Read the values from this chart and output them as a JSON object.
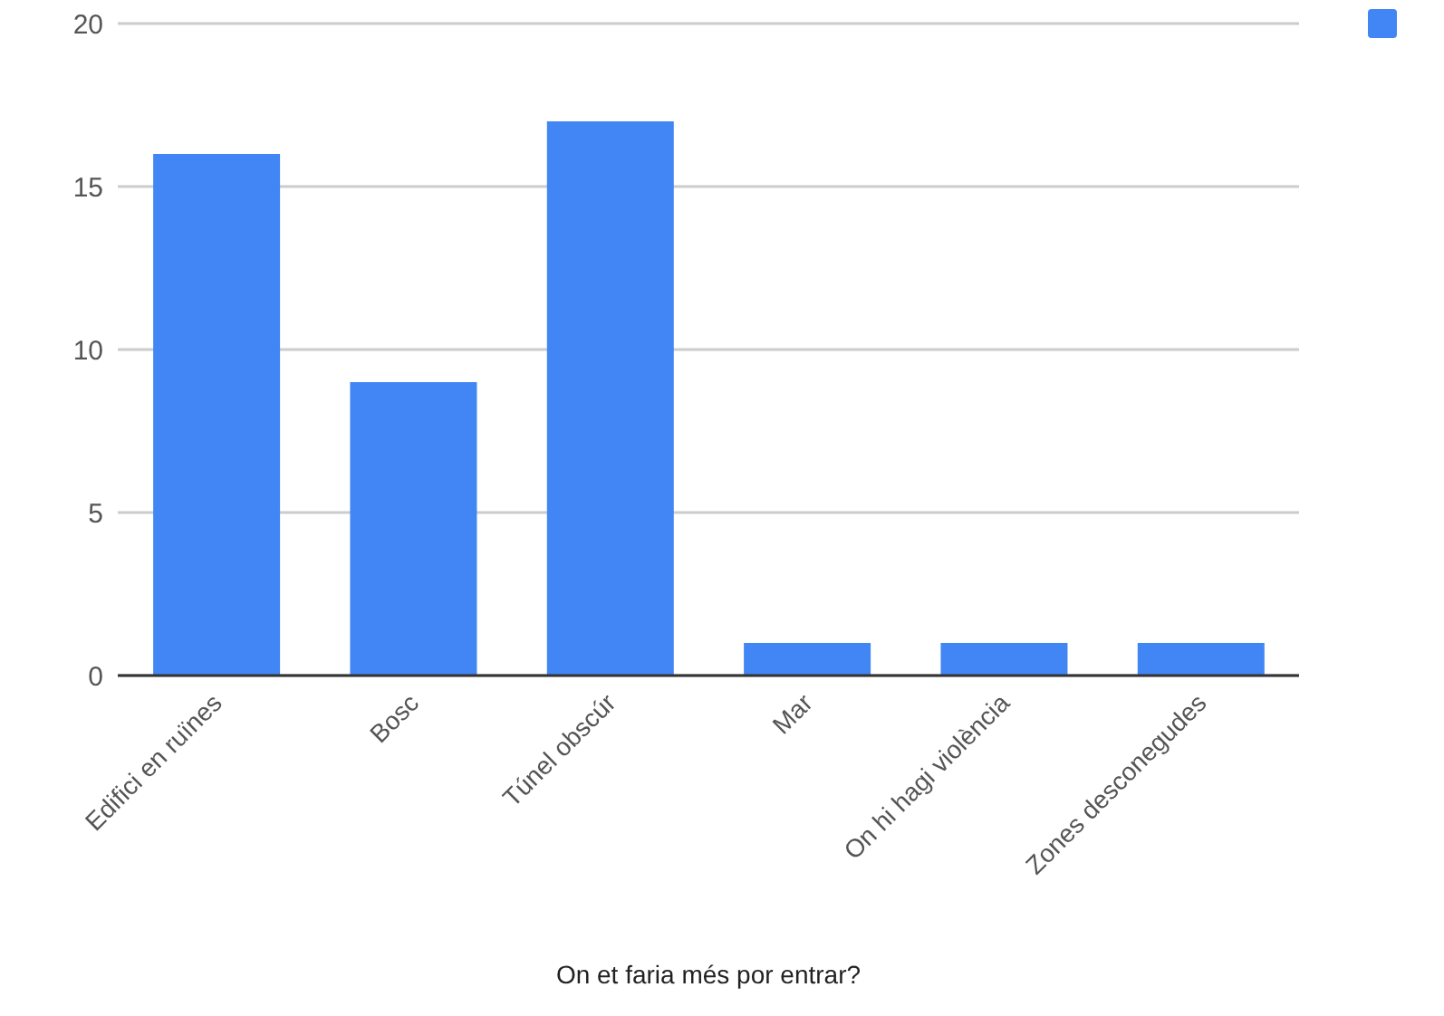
{
  "chart_data": {
    "type": "bar",
    "xlabel": "On et faria més por entrar?",
    "categories": [
      "Edifici en ruïnes",
      "Bosc",
      "Túnel obscúr",
      "Mar",
      "On hi hagi violència",
      "Zones desconegudes"
    ],
    "series": [
      {
        "color": "#4285f4",
        "values": [
          16,
          9,
          17,
          1,
          1,
          1
        ]
      }
    ],
    "ylim": [
      0,
      20
    ],
    "yticks": [
      0,
      5,
      10,
      15,
      20
    ],
    "grid": "y"
  }
}
